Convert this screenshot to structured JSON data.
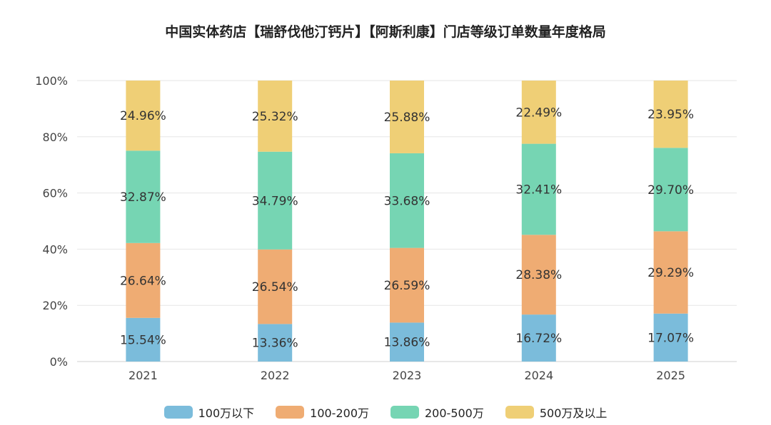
{
  "chart_data": {
    "type": "bar",
    "stacked": true,
    "title": "中国实体药店【瑞舒伐他汀钙片】【阿斯利康】门店等级订单数量年度格局",
    "categories": [
      "2021",
      "2022",
      "2023",
      "2024",
      "2025"
    ],
    "ylim": [
      0,
      100
    ],
    "yticks": [
      "0%",
      "20%",
      "40%",
      "60%",
      "80%",
      "100%"
    ],
    "grid": true,
    "legend_position": "bottom",
    "series": [
      {
        "name": "100万以下",
        "color": "#7bbcdb",
        "values": [
          15.54,
          13.36,
          13.86,
          16.72,
          17.07
        ],
        "labels": [
          "15.54%",
          "13.36%",
          "13.86%",
          "16.72%",
          "17.07%"
        ]
      },
      {
        "name": "100-200万",
        "color": "#efac73",
        "values": [
          26.64,
          26.54,
          26.59,
          28.38,
          29.29
        ],
        "labels": [
          "26.64%",
          "26.54%",
          "26.59%",
          "28.38%",
          "29.29%"
        ]
      },
      {
        "name": "200-500万",
        "color": "#76d5b3",
        "values": [
          32.87,
          34.79,
          33.68,
          32.41,
          29.7
        ],
        "labels": [
          "32.87%",
          "34.79%",
          "33.68%",
          "32.41%",
          "29.70%"
        ]
      },
      {
        "name": "500万及以上",
        "color": "#efcf76",
        "values": [
          24.96,
          25.32,
          25.88,
          22.49,
          23.95
        ],
        "labels": [
          "24.96%",
          "25.32%",
          "25.88%",
          "22.49%",
          "23.95%"
        ]
      }
    ]
  }
}
